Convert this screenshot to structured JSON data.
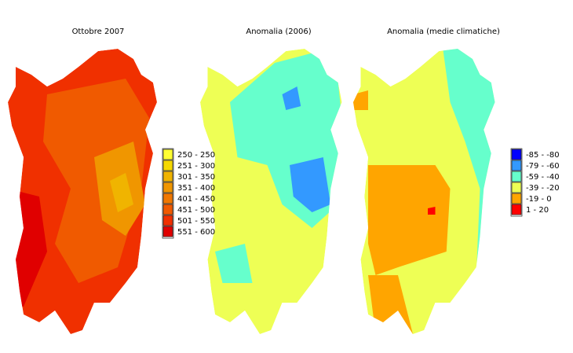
{
  "maps": [
    {
      "title": "Ottobre 2007"
    },
    {
      "title": "Anomalia (2006)"
    },
    {
      "title": "Anomalia (medie climatiche)"
    }
  ],
  "legends": [
    {
      "items": [
        {
          "label": "250 - 250",
          "color": "#ffff33"
        },
        {
          "label": "251 - 300",
          "color": "#f5d800"
        },
        {
          "label": "301 - 350",
          "color": "#f0b400"
        },
        {
          "label": "351 - 400",
          "color": "#f09600"
        },
        {
          "label": "401 - 450",
          "color": "#f07800"
        },
        {
          "label": "451 - 500",
          "color": "#f05a00"
        },
        {
          "label": "501 - 550",
          "color": "#f03000"
        },
        {
          "label": "551 - 600",
          "color": "#e00000"
        }
      ]
    },
    {
      "items": [
        {
          "label": "-85 - -80",
          "color": "#0000ff"
        },
        {
          "label": "-79 - -60",
          "color": "#3399ff"
        },
        {
          "label": "-59 - -40",
          "color": "#66ffcc"
        },
        {
          "label": "-39 - -20",
          "color": "#eeff55"
        },
        {
          "label": "-19 - 0",
          "color": "#ffa500"
        },
        {
          "label": "1 - 20",
          "color": "#ff0000"
        }
      ]
    }
  ]
}
